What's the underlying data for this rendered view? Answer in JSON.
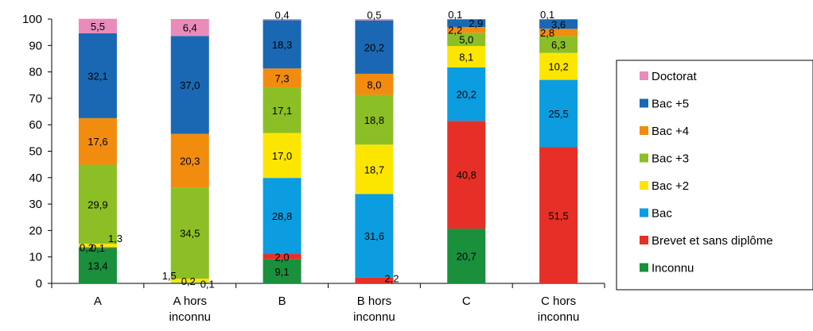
{
  "chart_data": {
    "type": "bar",
    "stacked": true,
    "ylim": [
      0,
      100
    ],
    "yticks": [
      0,
      10,
      20,
      30,
      40,
      50,
      60,
      70,
      80,
      90,
      100
    ],
    "grid": false,
    "legend_position": "right",
    "categories": [
      [
        "A"
      ],
      [
        "A hors",
        "inconnu"
      ],
      [
        "B"
      ],
      [
        "B hors",
        "inconnu"
      ],
      [
        "C"
      ],
      [
        "C hors",
        "inconnu"
      ]
    ],
    "series": [
      {
        "name": "Inconnu",
        "color": "#1a8f3c",
        "values": [
          13.4,
          0,
          9.1,
          0,
          20.7,
          0
        ],
        "labels": [
          "13,4",
          "",
          "9,1",
          "",
          "20,7",
          ""
        ]
      },
      {
        "name": "Brevet et sans diplôme",
        "color": "#e63027",
        "values": [
          0.1,
          0.1,
          2.0,
          2.2,
          40.8,
          51.5
        ],
        "labels": [
          "0,1",
          "0,1",
          "2,0",
          "2,2",
          "40,8",
          "51,5"
        ]
      },
      {
        "name": "Bac",
        "color": "#0b9de0",
        "values": [
          0.2,
          0.2,
          28.8,
          31.6,
          20.2,
          25.5
        ],
        "labels": [
          "0,2",
          "0,2",
          "28,8",
          "31,6",
          "20,2",
          "25,5"
        ]
      },
      {
        "name": "Bac +2",
        "color": "#fce600",
        "values": [
          1.3,
          1.5,
          17.0,
          18.7,
          8.1,
          10.2
        ],
        "labels": [
          "1,3",
          "1,5",
          "17,0",
          "18,7",
          "8,1",
          "10,2"
        ]
      },
      {
        "name": "Bac +3",
        "color": "#8cbf26",
        "values": [
          29.9,
          34.5,
          17.1,
          18.8,
          5.0,
          6.3
        ],
        "labels": [
          "29,9",
          "34,5",
          "17,1",
          "18,8",
          "5,0",
          "6,3"
        ]
      },
      {
        "name": "Bac +4",
        "color": "#f28c0f",
        "values": [
          17.6,
          20.3,
          7.3,
          8.0,
          2.2,
          2.8
        ],
        "labels": [
          "17,6",
          "20,3",
          "7,3",
          "8,0",
          "2,2",
          "2,8"
        ]
      },
      {
        "name": "Bac +5",
        "color": "#1a68b4",
        "values": [
          32.1,
          37.0,
          18.3,
          20.2,
          2.9,
          3.6
        ],
        "labels": [
          "32,1",
          "37,0",
          "18,3",
          "20,2",
          "2,9",
          "3,6"
        ]
      },
      {
        "name": "Doctorat",
        "color": "#e98bbb",
        "values": [
          5.5,
          6.4,
          0.4,
          0.5,
          0.1,
          0.1
        ],
        "labels": [
          "5,5",
          "6,4",
          "0,4",
          "0,5",
          "0,1",
          "0,1"
        ]
      }
    ],
    "legend_order": [
      "Doctorat",
      "Bac +5",
      "Bac +4",
      "Bac +3",
      "Bac +2",
      "Bac",
      "Brevet et sans diplôme",
      "Inconnu"
    ]
  }
}
